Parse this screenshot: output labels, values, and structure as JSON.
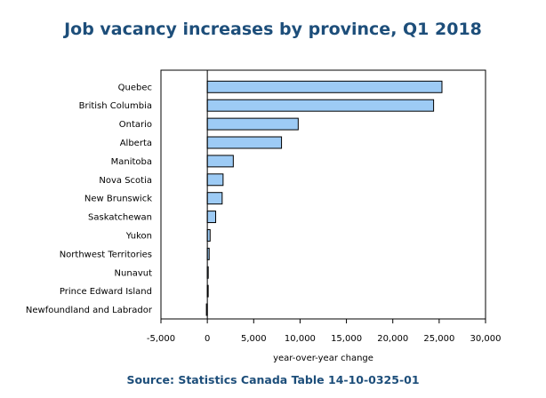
{
  "chart_data": {
    "type": "bar",
    "orientation": "horizontal",
    "title": "Job vacancy increases by province, Q1 2018",
    "source": "Source: Statistics Canada Table 14-10-0325-01",
    "xlabel": "year-over-year change",
    "ylabel": "",
    "xlim": [
      -5000,
      30000
    ],
    "xticks": [
      -5000,
      0,
      5000,
      10000,
      15000,
      20000,
      25000,
      30000
    ],
    "xtick_labels": [
      "-5,000",
      "0",
      "5,000",
      "10,000",
      "15,000",
      "20,000",
      "25,000",
      "30,000"
    ],
    "grid": false,
    "bar_color": "#9dcbf5",
    "bar_edge_color": "#000000",
    "categories": [
      "Quebec",
      "British Columbia",
      "Ontario",
      "Alberta",
      "Manitoba",
      "Nova Scotia",
      "New Brunswick",
      "Saskatchewan",
      "Yukon",
      "Northwest Territories",
      "Nunavut",
      "Prince Edward Island",
      "Newfoundland and Labrador"
    ],
    "values": [
      25300,
      24400,
      9800,
      8000,
      2800,
      1700,
      1600,
      900,
      300,
      200,
      100,
      50,
      -100
    ]
  }
}
